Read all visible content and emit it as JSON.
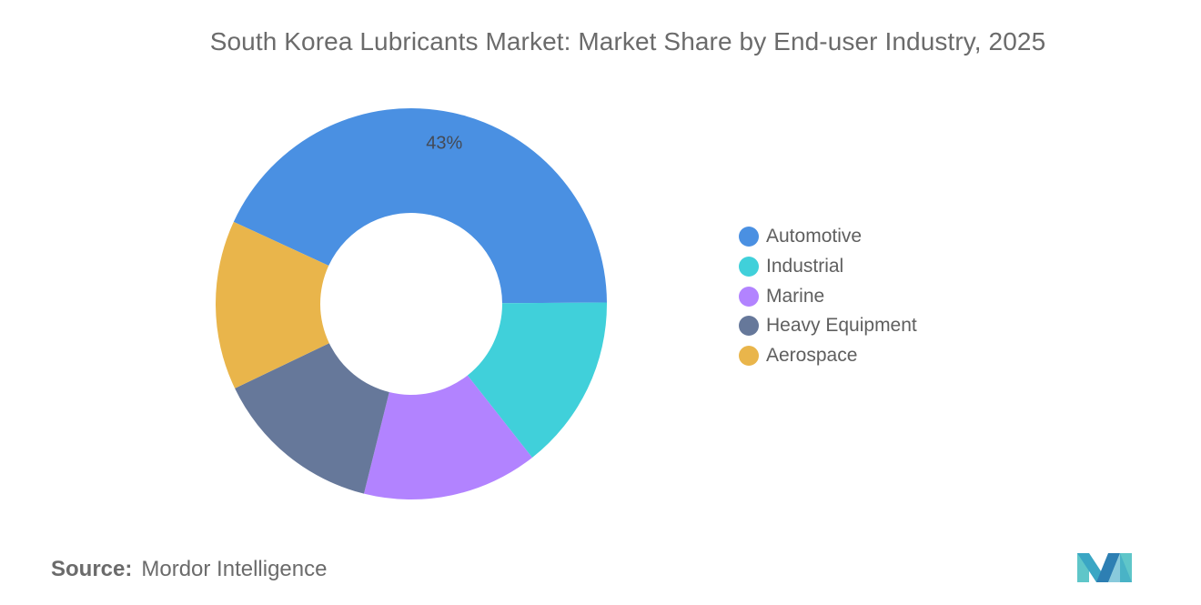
{
  "chart_data": {
    "type": "donut",
    "title": "South Korea Lubricants Market: Market Share by End-user Industry, 2025",
    "categories": [
      "Automotive",
      "Industrial",
      "Marine",
      "Heavy Equipment",
      "Aerospace"
    ],
    "values": [
      43,
      14.5,
      14.5,
      14,
      14
    ],
    "colors": [
      "#4a90e2",
      "#40d0da",
      "#b283ff",
      "#66789a",
      "#e9b54b"
    ],
    "data_labels": [
      "43%",
      "",
      "",
      "",
      ""
    ],
    "legend_position": "right"
  },
  "source": {
    "label": "Source:",
    "value": "Mordor Intelligence"
  }
}
